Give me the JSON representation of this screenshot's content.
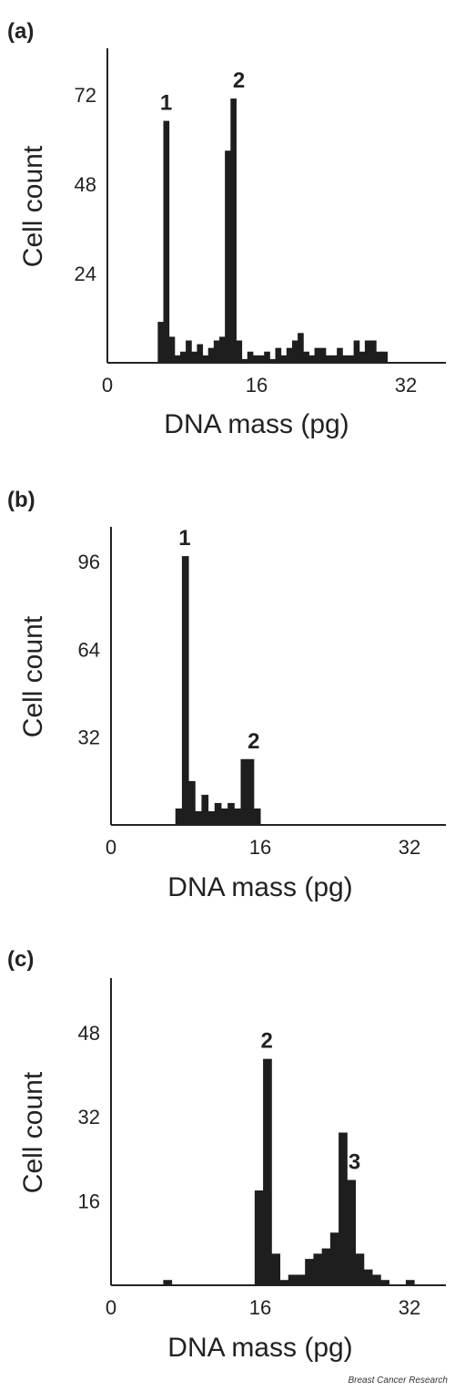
{
  "footer": "Breast Cancer Research",
  "chart_data": [
    {
      "type": "bar",
      "panel": "(a)",
      "xlabel": "DNA mass (pg)",
      "ylabel": "Cell count",
      "xticks": [
        0,
        16,
        32
      ],
      "yticks": [
        24,
        48,
        72
      ],
      "xlim": [
        0,
        36
      ],
      "ylim": [
        0,
        84
      ],
      "bin_width": 0.6,
      "x": [
        5.4,
        6.0,
        6.6,
        7.2,
        7.8,
        8.4,
        9.0,
        9.6,
        10.2,
        10.8,
        11.4,
        12.0,
        12.6,
        13.2,
        13.8,
        14.4,
        15.0,
        15.6,
        16.2,
        16.8,
        17.4,
        18.0,
        18.6,
        19.2,
        19.8,
        20.4,
        21.0,
        21.6,
        22.2,
        22.8,
        23.4,
        24.0,
        24.6,
        25.2,
        25.8,
        26.4,
        27.0,
        27.6,
        28.2,
        28.8,
        29.4,
        30.0
      ],
      "values": [
        11,
        65,
        7,
        2,
        3,
        6,
        3,
        5,
        2,
        4,
        6,
        7,
        57,
        71,
        6,
        1,
        3,
        2,
        2,
        3,
        1,
        4,
        2,
        4,
        6,
        8,
        3,
        2,
        4,
        4,
        2,
        2,
        4,
        2,
        2,
        6,
        3,
        6,
        6,
        3,
        3,
        0
      ],
      "labels": [
        {
          "text": "1",
          "x": 6.3
        },
        {
          "text": "2",
          "x": 14.1
        }
      ]
    },
    {
      "type": "bar",
      "panel": "(b)",
      "xlabel": "DNA mass (pg)",
      "ylabel": "Cell count",
      "xticks": [
        0,
        16,
        32
      ],
      "yticks": [
        32,
        64,
        96
      ],
      "xlim": [
        0,
        36
      ],
      "ylim": [
        0,
        108
      ],
      "bin_width": 0.7,
      "x": [
        6.9,
        7.6,
        8.3,
        9.0,
        9.7,
        10.4,
        11.1,
        11.8,
        12.5,
        13.2,
        13.9,
        14.6,
        15.3,
        16.0
      ],
      "values": [
        6,
        98,
        16,
        5,
        11,
        5,
        8,
        6,
        8,
        6,
        24,
        24,
        6,
        0
      ],
      "labels": [
        {
          "text": "1",
          "x": 7.9
        },
        {
          "text": "2",
          "x": 15.3
        }
      ]
    },
    {
      "type": "bar",
      "panel": "(c)",
      "xlabel": "DNA mass (pg)",
      "ylabel": "Cell count",
      "xticks": [
        0,
        16,
        32
      ],
      "yticks": [
        16,
        32,
        48
      ],
      "xlim": [
        0,
        36
      ],
      "ylim": [
        0,
        58
      ],
      "bin_width": 0.9,
      "x": [
        5.6,
        15.4,
        16.3,
        17.2,
        18.1,
        19.0,
        19.9,
        20.8,
        21.7,
        22.6,
        23.5,
        24.4,
        25.3,
        26.2,
        27.1,
        28.0,
        28.9,
        29.8,
        30.7,
        31.6,
        32.5
      ],
      "values": [
        1,
        18,
        43,
        6,
        1,
        2,
        2,
        5,
        6,
        7,
        10,
        29,
        20,
        6,
        3,
        2,
        1,
        0,
        0,
        1,
        0
      ],
      "labels": [
        {
          "text": "2",
          "x": 16.7
        },
        {
          "text": "3",
          "x": 26.1
        }
      ]
    }
  ]
}
